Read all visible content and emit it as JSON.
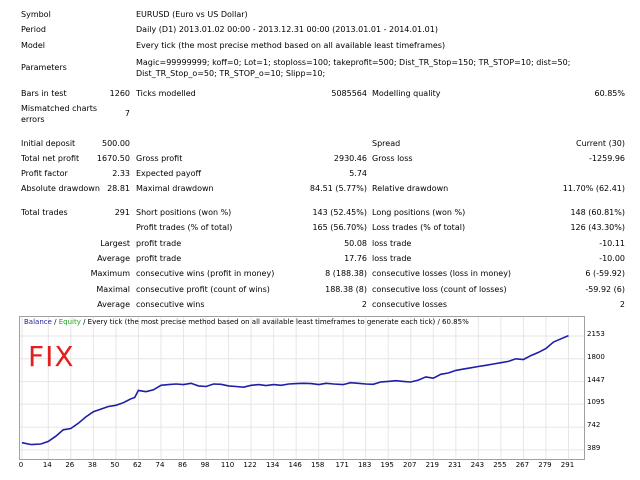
{
  "report": {
    "symbol_label": "Symbol",
    "symbol_value": "EURUSD (Euro vs US Dollar)",
    "period_label": "Period",
    "period_value": "Daily (D1) 2013.01.02 00:00 - 2013.12.31 00:00 (2013.01.01 - 2014.01.01)",
    "model_label": "Model",
    "model_value": "Every tick (the most precise method based on all available least timeframes)",
    "parameters_label": "Parameters",
    "parameters_value": "Magic=99999999; koff=0; Lot=1; stoploss=100; takeprofit=500; Dist_TR_Stop=150; TR_STOP=10; dist=50; Dist_TR_Stop_o=50; TR_STOP_o=10; Slipp=10;",
    "bars_label": "Bars in test",
    "bars_value": "1260",
    "ticks_label": "Ticks modelled",
    "ticks_value": "5085564",
    "quality_label": "Modelling quality",
    "quality_value": "60.85%",
    "mismatch_label": "Mismatched charts errors",
    "mismatch_value": "7",
    "initial_deposit_label": "Initial deposit",
    "initial_deposit_value": "500.00",
    "spread_label": "Spread",
    "spread_value": "Current (30)",
    "net_profit_label": "Total net profit",
    "net_profit_value": "1670.50",
    "gross_profit_label": "Gross profit",
    "gross_profit_value": "2930.46",
    "gross_loss_label": "Gross loss",
    "gross_loss_value": "-1259.96",
    "profit_factor_label": "Profit factor",
    "profit_factor_value": "2.33",
    "expected_payoff_label": "Expected payoff",
    "expected_payoff_value": "5.74",
    "abs_dd_label": "Absolute drawdown",
    "abs_dd_value": "28.81",
    "max_dd_label": "Maximal drawdown",
    "max_dd_value": "84.51 (5.77%)",
    "rel_dd_label": "Relative drawdown",
    "rel_dd_value": "11.70% (62.41)",
    "total_trades_label": "Total trades",
    "total_trades_value": "291",
    "short_label": "Short positions (won %)",
    "short_value": "143 (52.45%)",
    "long_label": "Long positions (won %)",
    "long_value": "148 (60.81%)",
    "profit_trades_label": "Profit trades (% of total)",
    "profit_trades_value": "165 (56.70%)",
    "loss_trades_label": "Loss trades (% of total)",
    "loss_trades_value": "126 (43.30%)",
    "largest_label": "Largest",
    "largest_profit_label": "profit trade",
    "largest_profit_value": "50.08",
    "largest_loss_label": "loss trade",
    "largest_loss_value": "-10.11",
    "average_label": "Average",
    "average_profit_label": "profit trade",
    "average_profit_value": "17.76",
    "average_loss_label": "loss trade",
    "average_loss_value": "-10.00",
    "maximum_label": "Maximum",
    "max_cons_wins_label": "consecutive wins (profit in money)",
    "max_cons_wins_value": "8 (188.38)",
    "max_cons_losses_label": "consecutive losses (loss in money)",
    "max_cons_losses_value": "6 (-59.92)",
    "maximal_label": "Maximal",
    "maximal_cons_profit_label": "consecutive profit (count of wins)",
    "maximal_cons_profit_value": "188.38 (8)",
    "maximal_cons_loss_label": "consecutive loss (count of losses)",
    "maximal_cons_loss_value": "-59.92 (6)",
    "average2_label": "Average",
    "avg_cons_wins_label": "consecutive wins",
    "avg_cons_wins_value": "2",
    "avg_cons_losses_label": "consecutive losses",
    "avg_cons_losses_value": "2"
  },
  "legend": {
    "balance": "Balance",
    "sep": " / ",
    "equity": "Equity",
    "rest": " / Every tick (the most precise method based on all available least timeframes to generate each tick) / 60.85%"
  },
  "overlay_text": "FIX",
  "colors": {
    "balance": "#1e1ea8",
    "equity": "#1fa31f",
    "overlay": "#e41e1e"
  },
  "chart_data": {
    "type": "line",
    "title": "",
    "xlabel": "",
    "ylabel": "",
    "x_ticks": [
      0,
      14,
      26,
      38,
      50,
      62,
      74,
      86,
      98,
      110,
      122,
      134,
      146,
      158,
      171,
      183,
      195,
      207,
      219,
      231,
      243,
      255,
      267,
      279,
      291
    ],
    "y_ticks": [
      389,
      742,
      1095,
      1447,
      1800,
      2153
    ],
    "xlim": [
      0,
      295
    ],
    "ylim": [
      340,
      2200
    ],
    "series": [
      {
        "name": "Balance",
        "x": [
          0,
          5,
          10,
          14,
          18,
          22,
          26,
          30,
          34,
          38,
          42,
          46,
          50,
          54,
          58,
          60,
          62,
          66,
          70,
          74,
          78,
          82,
          86,
          90,
          94,
          98,
          102,
          106,
          110,
          114,
          118,
          122,
          126,
          130,
          134,
          138,
          142,
          146,
          150,
          154,
          158,
          162,
          166,
          171,
          175,
          179,
          183,
          187,
          191,
          195,
          199,
          203,
          207,
          211,
          215,
          219,
          223,
          227,
          231,
          235,
          239,
          243,
          247,
          251,
          255,
          259,
          263,
          267,
          271,
          275,
          279,
          283,
          287,
          291
        ],
        "y": [
          500,
          470,
          480,
          520,
          600,
          700,
          720,
          800,
          900,
          980,
          1020,
          1060,
          1080,
          1120,
          1180,
          1200,
          1310,
          1290,
          1320,
          1390,
          1400,
          1410,
          1400,
          1420,
          1380,
          1370,
          1410,
          1405,
          1380,
          1370,
          1360,
          1390,
          1400,
          1385,
          1400,
          1390,
          1410,
          1415,
          1420,
          1415,
          1400,
          1420,
          1410,
          1400,
          1430,
          1420,
          1410,
          1405,
          1440,
          1450,
          1460,
          1450,
          1440,
          1470,
          1520,
          1500,
          1560,
          1580,
          1620,
          1640,
          1660,
          1680,
          1700,
          1720,
          1740,
          1760,
          1800,
          1790,
          1850,
          1900,
          1960,
          2060,
          2110,
          2160
        ]
      }
    ]
  }
}
